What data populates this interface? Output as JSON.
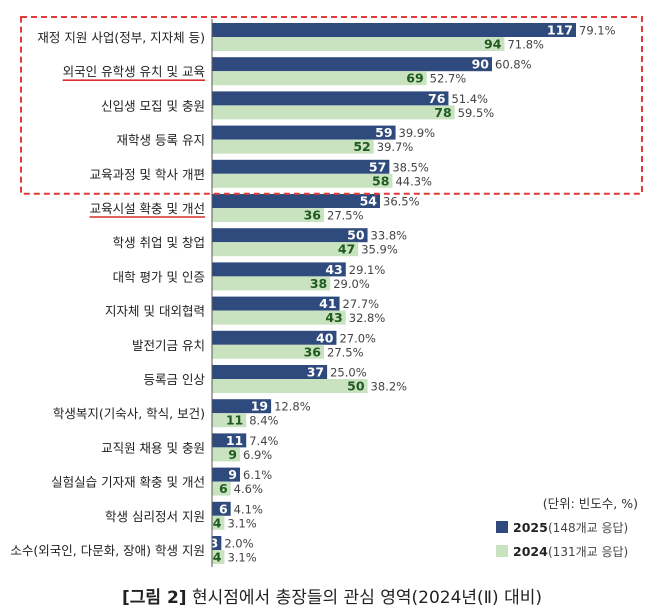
{
  "chart_data": {
    "type": "bar",
    "orientation": "horizontal",
    "categories": [
      "재정 지원 사업(정부, 지자체 등)",
      "외국인 유학생 유치 및 교육",
      "신입생 모집 및 충원",
      "재학생 등록 유지",
      "교육과정 및 학사 개편",
      "교육시설 확충 및 개선",
      "학생 취업 및 창업",
      "대학 평가 및 인증",
      "지자체 및 대외협력",
      "발전기금 유치",
      "등록금 인상",
      "학생복지(기숙사, 학식, 보건)",
      "교직원 채용 및 충원",
      "실험실습 기자재 확충 및 개선",
      "학생 심리정서 지원",
      "소수(외국인, 다문화, 장애) 학생 지원"
    ],
    "underlined_categories": [
      "외국인 유학생 유치 및 교육",
      "교육시설 확충 및 개선"
    ],
    "highlight_box": {
      "from_category": "재정 지원 사업(정부, 지자체 등)",
      "to_category": "교육과정 및 학사 개편",
      "color": "#e03a3a"
    },
    "series": [
      {
        "name": "2025",
        "legend_label": "2025",
        "legend_note": "(148개교 응답)",
        "color": "#2f4a7c",
        "label_color": "#ffffff",
        "values": [
          117,
          90,
          76,
          59,
          57,
          54,
          50,
          43,
          41,
          40,
          37,
          19,
          11,
          9,
          6,
          3
        ],
        "percents": [
          "79.1%",
          "60.8%",
          "51.4%",
          "39.9%",
          "38.5%",
          "36.5%",
          "33.8%",
          "29.1%",
          "27.7%",
          "27.0%",
          "25.0%",
          "12.8%",
          "7.4%",
          "6.1%",
          "4.1%",
          "2.0%"
        ]
      },
      {
        "name": "2024",
        "legend_label": "2024",
        "legend_note": "(131개교 응답)",
        "color": "#c9e3c1",
        "label_color": "#1f5a1f",
        "values": [
          94,
          69,
          78,
          52,
          58,
          36,
          47,
          38,
          43,
          36,
          50,
          11,
          9,
          6,
          4,
          4
        ],
        "percents": [
          "71.8%",
          "52.7%",
          "59.5%",
          "39.7%",
          "44.3%",
          "27.5%",
          "35.9%",
          "29.0%",
          "32.8%",
          "27.5%",
          "38.2%",
          "8.4%",
          "6.9%",
          "4.6%",
          "3.1%",
          "3.1%"
        ]
      }
    ],
    "xlim": [
      0,
      117
    ],
    "unit_note": "(단위: 빈도수, %)"
  },
  "caption": {
    "prefix": "[그림 2]",
    "text": " 현시점에서 총장들의 관심 영역(2024년(Ⅱ) 대비)"
  }
}
